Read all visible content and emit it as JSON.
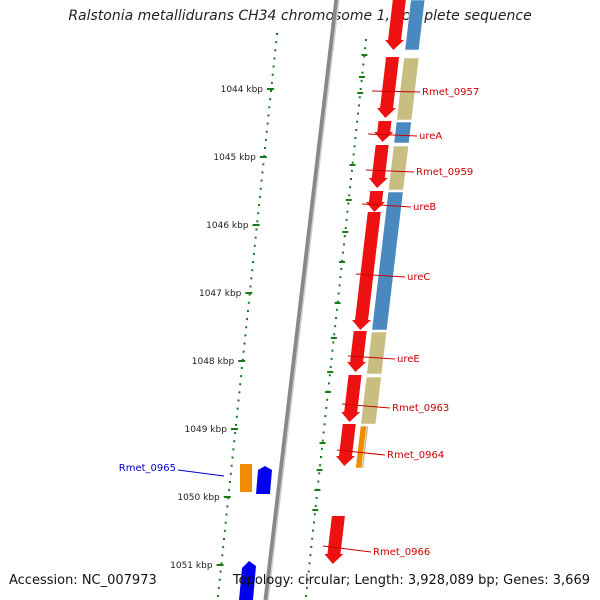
{
  "title": "Ralstonia metallidurans CH34 chromosome 1, complete sequence",
  "footer": {
    "accession": "Accession: NC_007973",
    "topology": "Topology: circular; Length: 3,928,089 bp; Genes: 3,669"
  },
  "ticks": [
    "1044 kbp",
    "1045 kbp",
    "1046 kbp",
    "1047 kbp",
    "1048 kbp",
    "1049 kbp",
    "1050 kbp",
    "1051 kbp"
  ],
  "genes_right": [
    {
      "name": "Rmet_0957",
      "color": "#cc0000"
    },
    {
      "name": "ureA",
      "color": "#cc0000"
    },
    {
      "name": "Rmet_0959",
      "color": "#cc0000"
    },
    {
      "name": "ureB",
      "color": "#cc0000"
    },
    {
      "name": "ureC",
      "color": "#cc0000"
    },
    {
      "name": "ureE",
      "color": "#cc0000"
    },
    {
      "name": "Rmet_0963",
      "color": "#cc0000"
    },
    {
      "name": "Rmet_0964",
      "color": "#cc0000"
    },
    {
      "name": "Rmet_0966",
      "color": "#cc0000"
    }
  ],
  "genes_left": [
    {
      "name": "Rmet_0965",
      "color": "#0000cc"
    }
  ],
  "colors": {
    "forward_cds": "#ee1111",
    "reverse_cds": "#0000ee",
    "cog_tan": "#c8be82",
    "cog_blue": "#4a88c0",
    "cog_orange": "#f08c00",
    "backbone": "#888888",
    "tick_green": "#1a7a1a"
  }
}
